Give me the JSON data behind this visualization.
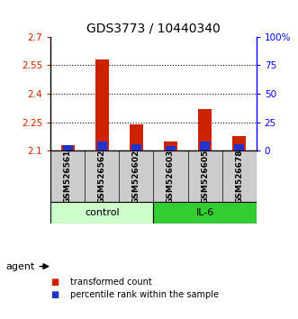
{
  "title": "GDS3773 / 10440340",
  "samples": [
    "GSM526561",
    "GSM526562",
    "GSM526602",
    "GSM526603",
    "GSM526605",
    "GSM526678"
  ],
  "transformed_counts": [
    2.13,
    2.58,
    2.24,
    2.15,
    2.32,
    2.18
  ],
  "percentile_ranks": [
    5,
    8,
    6,
    4,
    8,
    6
  ],
  "ylim": [
    2.1,
    2.7
  ],
  "yticks": [
    2.1,
    2.25,
    2.4,
    2.55,
    2.7
  ],
  "ytick_labels": [
    "2.1",
    "2.25",
    "2.4",
    "2.55",
    "2.7"
  ],
  "right_ytick_labels": [
    "0",
    "25",
    "50",
    "75",
    "100%"
  ],
  "bar_width": 0.4,
  "red_color": "#cc2200",
  "blue_color": "#2233cc",
  "control_color": "#ccffcc",
  "il6_color": "#33cc33",
  "sample_bg_color": "#cccccc",
  "agent_label": "agent",
  "legend_red": "transformed count",
  "legend_blue": "percentile rank within the sample",
  "base": 2.1,
  "percentile_scale": 0.006,
  "grid_yticks": [
    2.25,
    2.4,
    2.55
  ],
  "right_ytick_vals": [
    2.1,
    2.25,
    2.4,
    2.55,
    2.7
  ]
}
